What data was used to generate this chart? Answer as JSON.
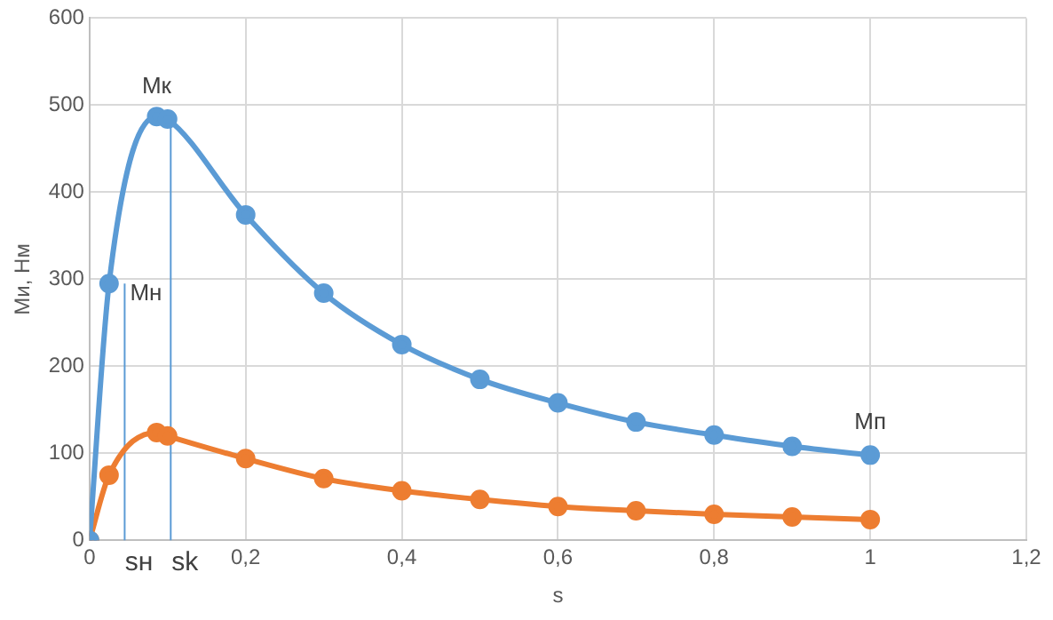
{
  "chart_data": {
    "type": "line",
    "xlabel": "s",
    "ylabel": "Ми, Нм",
    "xlim": [
      0,
      1.2
    ],
    "xticks": [
      0,
      {
        "value": 0.2,
        "label": "0,2"
      },
      {
        "value": 0.4,
        "label": "0,4"
      },
      {
        "value": 0.6,
        "label": "0,6"
      },
      {
        "value": 0.8,
        "label": "0,8"
      },
      1,
      {
        "value": 1.2,
        "label": "1,2"
      }
    ],
    "ylim": [
      0,
      600
    ],
    "yticks": [
      0,
      100,
      200,
      300,
      400,
      500,
      600
    ],
    "grid": true,
    "legend": false,
    "marker": "circle",
    "series": [
      {
        "color": "#5b9bd5",
        "x": [
          0,
          0.025,
          0.086,
          0.1,
          0.2,
          0.3,
          0.4,
          0.5,
          0.6,
          0.7,
          0.8,
          0.9,
          1
        ],
        "values": [
          0,
          295,
          487,
          484,
          374,
          284,
          225,
          185,
          158,
          136,
          121,
          108,
          98
        ]
      },
      {
        "color": "#ed7d31",
        "x": [
          0,
          0.025,
          0.086,
          0.1,
          0.2,
          0.3,
          0.4,
          0.5,
          0.6,
          0.7,
          0.8,
          0.9,
          1
        ],
        "values": [
          0,
          75,
          124,
          120,
          94,
          71,
          57,
          47,
          39,
          34,
          30,
          27,
          24
        ]
      },
      {
        "color": "#5b9bd5",
        "marker": "none",
        "x": [
          0.045,
          0.045
        ],
        "values": [
          0,
          295
        ]
      },
      {
        "color": "#5b9bd5",
        "marker": "none",
        "x": [
          0.104,
          0.104
        ],
        "values": [
          0,
          484
        ]
      }
    ],
    "annotations": [
      {
        "text": "Мк",
        "x": 0.086,
        "y": 487
      },
      {
        "text": "Мн",
        "x": 0.045,
        "y": 295
      },
      {
        "text": "Мп",
        "x": 1,
        "y": 98
      },
      {
        "text": "sн",
        "x": 0.045,
        "y": 0
      },
      {
        "text": "sk",
        "x": 0.104,
        "y": 0
      }
    ]
  }
}
